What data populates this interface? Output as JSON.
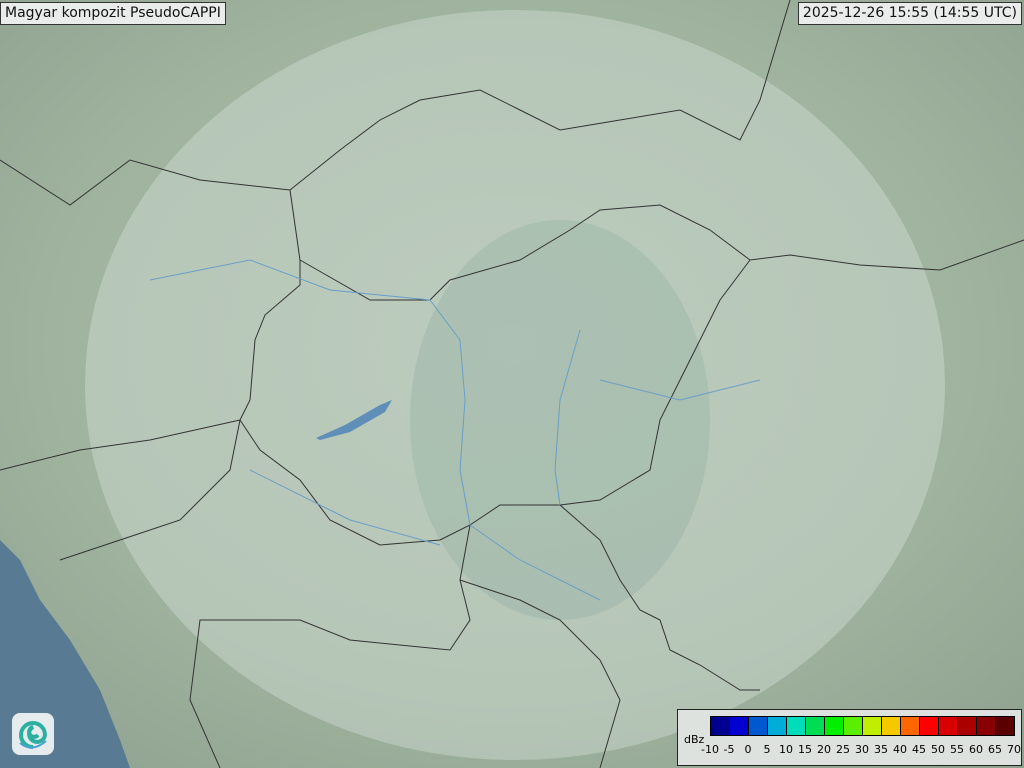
{
  "title": "Magyar kompozit  PseudoCAPPI",
  "timestamp": "2025-12-26 15:55 (14:55 UTC)",
  "logo": {
    "icon": "swirl-logo-icon"
  },
  "legend": {
    "unit": "dBz",
    "ticks": [
      "-10",
      "-5",
      "0",
      "5",
      "10",
      "15",
      "20",
      "25",
      "30",
      "35",
      "40",
      "45",
      "50",
      "55",
      "60",
      "65",
      "70"
    ],
    "colors": [
      "#000090",
      "#0000d0",
      "#0058d0",
      "#00acd8",
      "#00ddb8",
      "#00dd55",
      "#00ee00",
      "#5aee00",
      "#c0ee00",
      "#f5c800",
      "#ff6600",
      "#ff0000",
      "#d80000",
      "#aa0000",
      "#880000",
      "#5a0000"
    ]
  }
}
